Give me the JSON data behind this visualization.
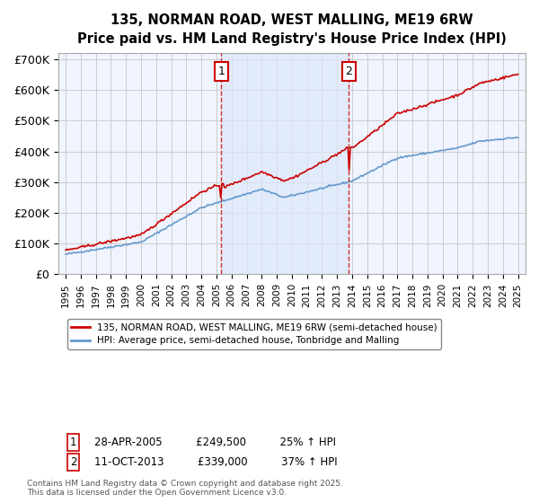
{
  "title": "135, NORMAN ROAD, WEST MALLING, ME19 6RW",
  "subtitle": "Price paid vs. HM Land Registry's House Price Index (HPI)",
  "ylabel": "",
  "ylim": [
    0,
    720000
  ],
  "yticks": [
    0,
    100000,
    200000,
    300000,
    400000,
    500000,
    600000,
    700000
  ],
  "ytick_labels": [
    "£0",
    "£100K",
    "£200K",
    "£300K",
    "£400K",
    "£500K",
    "£600K",
    "£700K"
  ],
  "xlim_start": 1994.5,
  "xlim_end": 2025.5,
  "xticks": [
    1995,
    1996,
    1997,
    1998,
    1999,
    2000,
    2001,
    2002,
    2003,
    2004,
    2005,
    2006,
    2007,
    2008,
    2009,
    2010,
    2011,
    2012,
    2013,
    2014,
    2015,
    2016,
    2017,
    2018,
    2019,
    2020,
    2021,
    2022,
    2023,
    2024,
    2025
  ],
  "background_color": "#ffffff",
  "plot_bg_color": "#f0f4ff",
  "grid_color": "#cccccc",
  "event1_x": 2005.32,
  "event2_x": 2013.78,
  "event1_label": "1",
  "event2_label": "2",
  "legend_line1": "135, NORMAN ROAD, WEST MALLING, ME19 6RW (semi-detached house)",
  "legend_line2": "HPI: Average price, semi-detached house, Tonbridge and Malling",
  "annotation1": "1     28-APR-2005          £249,500          25% ↑ HPI",
  "annotation2": "2     11-OCT-2013          £339,000          37% ↑ HPI",
  "footer": "Contains HM Land Registry data © Crown copyright and database right 2025.\nThis data is licensed under the Open Government Licence v3.0.",
  "red_color": "#cc0000",
  "blue_color": "#6699cc",
  "shade_color": "#dde8f8"
}
